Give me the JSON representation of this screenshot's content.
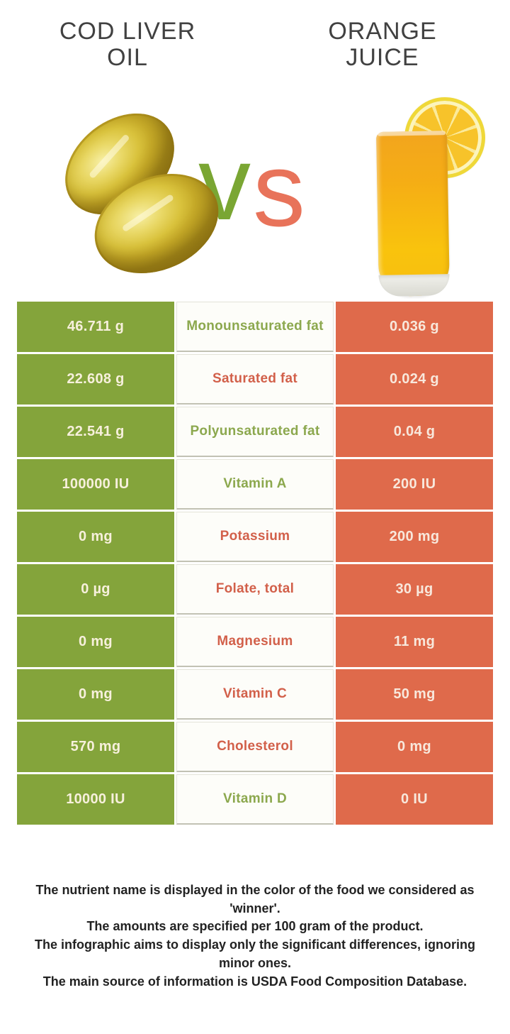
{
  "header": {
    "left": {
      "line1": "COD LIVER",
      "line2": "OIL"
    },
    "right": {
      "line1": "ORANGE",
      "line2": "JUICE"
    }
  },
  "versus": {
    "v": "v",
    "s": "s"
  },
  "colors": {
    "left_cell_bg": "#84A43B",
    "right_cell_bg": "#DF6A4B",
    "nutrient_green": "#8CA84E",
    "nutrient_red": "#D2604A",
    "value_text": "#F7F0DC",
    "title_text": "#414141",
    "vs_v": "#7AA633",
    "vs_s": "#E8735A"
  },
  "icons": {
    "left_image": "cod-liver-oil-capsules",
    "right_image": "orange-juice-glass-with-orange-slice"
  },
  "chart_data": {
    "type": "table",
    "title": "Cod liver oil vs Orange juice",
    "foods": [
      "Cod liver oil",
      "Orange juice"
    ],
    "unit_note": "per 100 gram",
    "rows": [
      {
        "nutrient": "Monounsaturated fat",
        "cod_liver_oil": "46.711 g",
        "orange_juice": "0.036 g",
        "winner": "cod_liver_oil"
      },
      {
        "nutrient": "Saturated fat",
        "cod_liver_oil": "22.608 g",
        "orange_juice": "0.024 g",
        "winner": "orange_juice"
      },
      {
        "nutrient": "Polyunsaturated fat",
        "cod_liver_oil": "22.541 g",
        "orange_juice": "0.04 g",
        "winner": "cod_liver_oil"
      },
      {
        "nutrient": "Vitamin A",
        "cod_liver_oil": "100000 IU",
        "orange_juice": "200 IU",
        "winner": "cod_liver_oil"
      },
      {
        "nutrient": "Potassium",
        "cod_liver_oil": "0 mg",
        "orange_juice": "200 mg",
        "winner": "orange_juice"
      },
      {
        "nutrient": "Folate, total",
        "cod_liver_oil": "0 µg",
        "orange_juice": "30 µg",
        "winner": "orange_juice"
      },
      {
        "nutrient": "Magnesium",
        "cod_liver_oil": "0 mg",
        "orange_juice": "11 mg",
        "winner": "orange_juice"
      },
      {
        "nutrient": "Vitamin C",
        "cod_liver_oil": "0 mg",
        "orange_juice": "50 mg",
        "winner": "orange_juice"
      },
      {
        "nutrient": "Cholesterol",
        "cod_liver_oil": "570 mg",
        "orange_juice": "0 mg",
        "winner": "orange_juice"
      },
      {
        "nutrient": "Vitamin D",
        "cod_liver_oil": "10000 IU",
        "orange_juice": "0 IU",
        "winner": "cod_liver_oil"
      }
    ]
  },
  "footer": {
    "lines": [
      "The nutrient name is displayed in the color of the food we considered as 'winner'.",
      "The amounts are specified per 100 gram of the product.",
      "The infographic aims to display only the significant differences, ignoring minor ones.",
      "The main source of information is USDA Food Composition Database."
    ]
  }
}
